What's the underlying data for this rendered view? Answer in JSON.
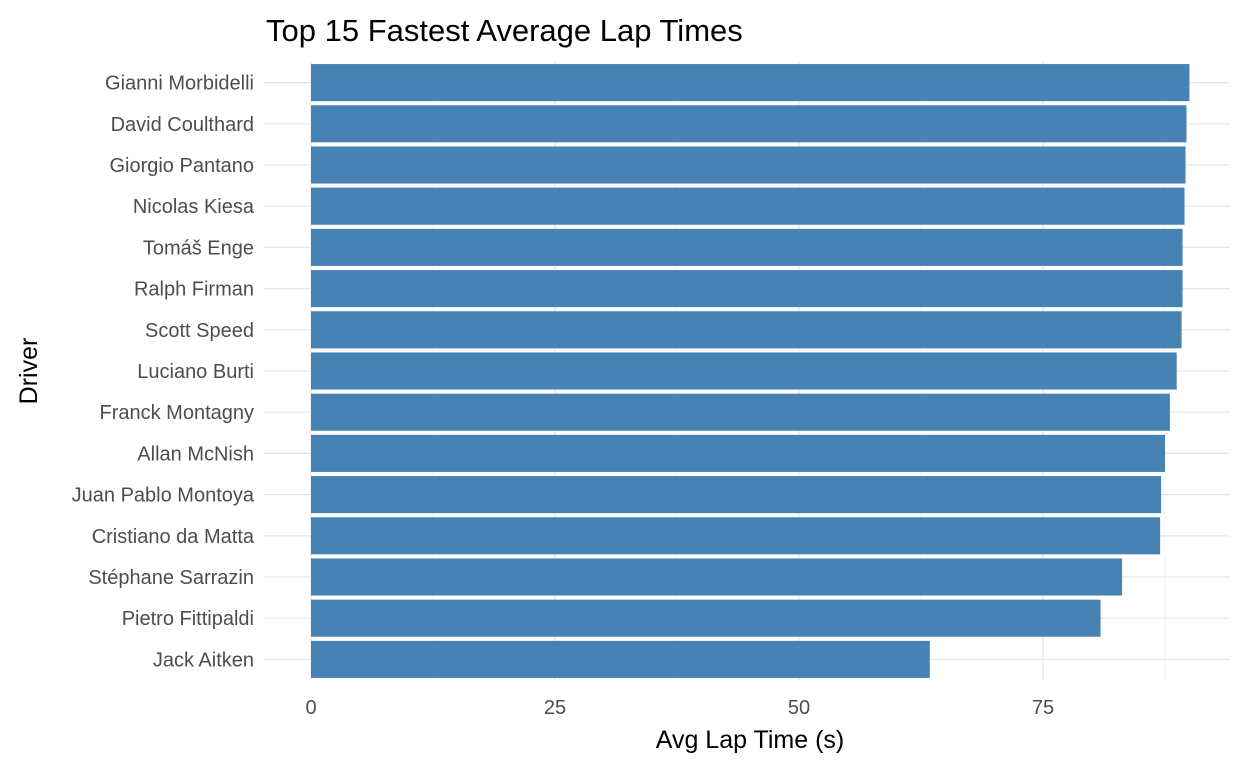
{
  "chart_data": {
    "type": "bar",
    "orientation": "horizontal",
    "title": "Top 15 Fastest Average Lap Times",
    "xlabel": "Avg Lap Time (s)",
    "ylabel": "Driver",
    "categories": [
      "Gianni Morbidelli",
      "David Coulthard",
      "Giorgio Pantano",
      "Nicolas Kiesa",
      "Tomáš Enge",
      "Ralph Firman",
      "Scott Speed",
      "Luciano Burti",
      "Franck Montagny",
      "Allan McNish",
      "Juan Pablo Montoya",
      "Cristiano da Matta",
      "Stéphane Sarrazin",
      "Pietro Fittipaldi",
      "Jack Aitken"
    ],
    "values": [
      90.0,
      89.7,
      89.6,
      89.5,
      89.3,
      89.3,
      89.2,
      88.7,
      88.0,
      87.5,
      87.1,
      87.0,
      83.1,
      80.9,
      63.4
    ],
    "xlim": [
      0,
      94
    ],
    "xticks": [
      0,
      25,
      50,
      75
    ],
    "grid": true,
    "bar_color": "#4682B4"
  }
}
